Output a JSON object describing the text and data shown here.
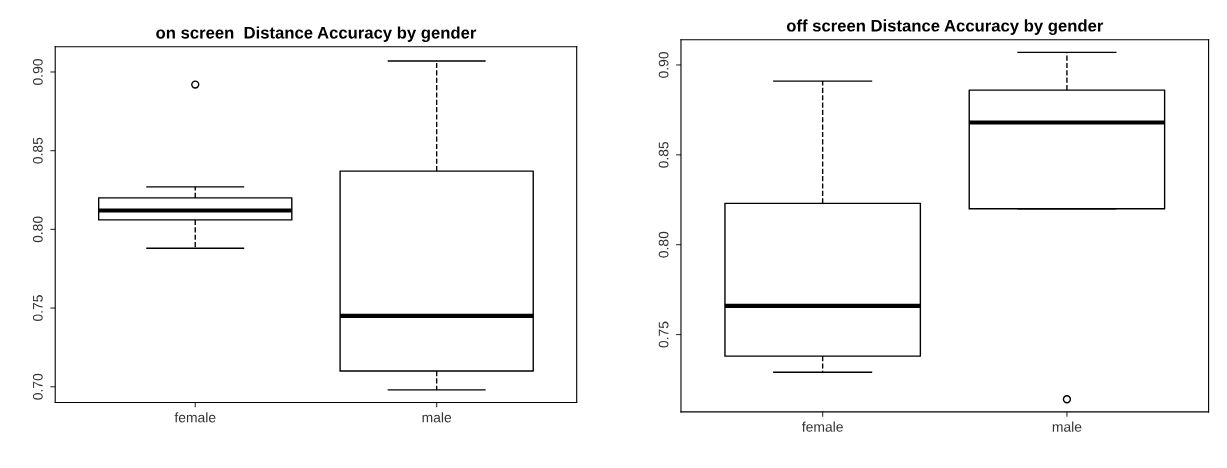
{
  "chart_data": [
    {
      "type": "box",
      "title": "on screen  Distance Accuracy by gender",
      "categories": [
        "female",
        "male"
      ],
      "ylim": [
        0.69,
        0.916
      ],
      "yticks": [
        {
          "value": 0.7,
          "label": "0.70"
        },
        {
          "value": 0.75,
          "label": "0.75"
        },
        {
          "value": 0.8,
          "label": "0.80"
        },
        {
          "value": 0.85,
          "label": "0.85"
        },
        {
          "value": 0.9,
          "label": "0.90"
        }
      ],
      "grid": false,
      "boxes": [
        {
          "low": 0.788,
          "q1": 0.806,
          "median": 0.812,
          "q3": 0.82,
          "high": 0.827,
          "outliers": [
            0.892
          ]
        },
        {
          "low": 0.698,
          "q1": 0.71,
          "median": 0.745,
          "q3": 0.837,
          "high": 0.907
        }
      ]
    },
    {
      "type": "box",
      "title": "off screen Distance Accuracy by gender",
      "categories": [
        "female",
        "male"
      ],
      "ylim": [
        0.707,
        0.914
      ],
      "yticks": [
        {
          "value": 0.75,
          "label": "0.75"
        },
        {
          "value": 0.8,
          "label": "0.80"
        },
        {
          "value": 0.85,
          "label": "0.85"
        },
        {
          "value": 0.9,
          "label": "0.90"
        }
      ],
      "grid": false,
      "boxes": [
        {
          "low": 0.729,
          "q1": 0.738,
          "median": 0.766,
          "q3": 0.823,
          "high": 0.891
        },
        {
          "low": 0.82,
          "q1": 0.82,
          "median": 0.868,
          "q3": 0.886,
          "high": 0.907,
          "outliers": [
            0.714
          ]
        }
      ]
    }
  ]
}
